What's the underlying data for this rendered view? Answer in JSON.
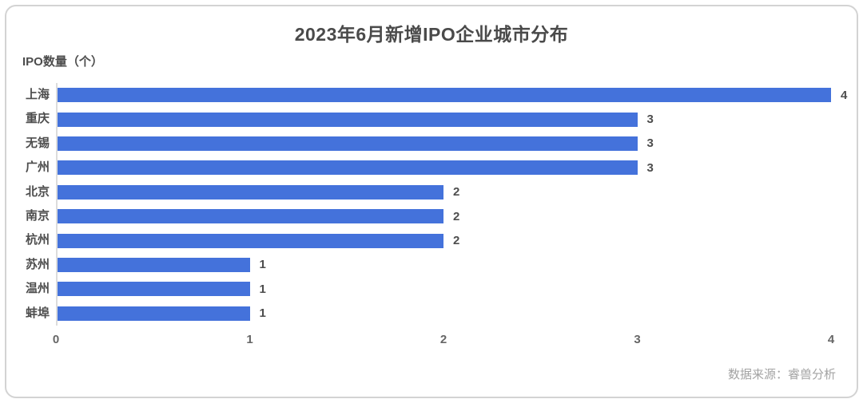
{
  "header": {
    "title": "2023年6月新增IPO企业城市分布"
  },
  "chart_data": {
    "type": "bar",
    "orientation": "horizontal",
    "title": "2023年6月新增IPO企业城市分布",
    "ylabel": "IPO数量（个）",
    "categories": [
      "上海",
      "重庆",
      "无锡",
      "广州",
      "北京",
      "南京",
      "杭州",
      "苏州",
      "温州",
      "蚌埠"
    ],
    "values": [
      4,
      3,
      3,
      3,
      2,
      2,
      2,
      1,
      1,
      1
    ],
    "x_ticks": [
      "0",
      "1",
      "2",
      "3",
      "4"
    ],
    "xlim": [
      0,
      4
    ],
    "grid": false,
    "legend": "none",
    "value_labels_shown": true,
    "bar_color": "#4472db"
  },
  "footer": {
    "source": "数据来源：睿兽分析"
  },
  "colors": {
    "bar": "#4472db",
    "title_text": "#4a4a4a",
    "label_text": "#4d4d4d",
    "tick_text": "#666666",
    "source_text": "#a3a3a3",
    "axis_line": "#dcdcdc",
    "card_border": "#d3d3d3"
  }
}
